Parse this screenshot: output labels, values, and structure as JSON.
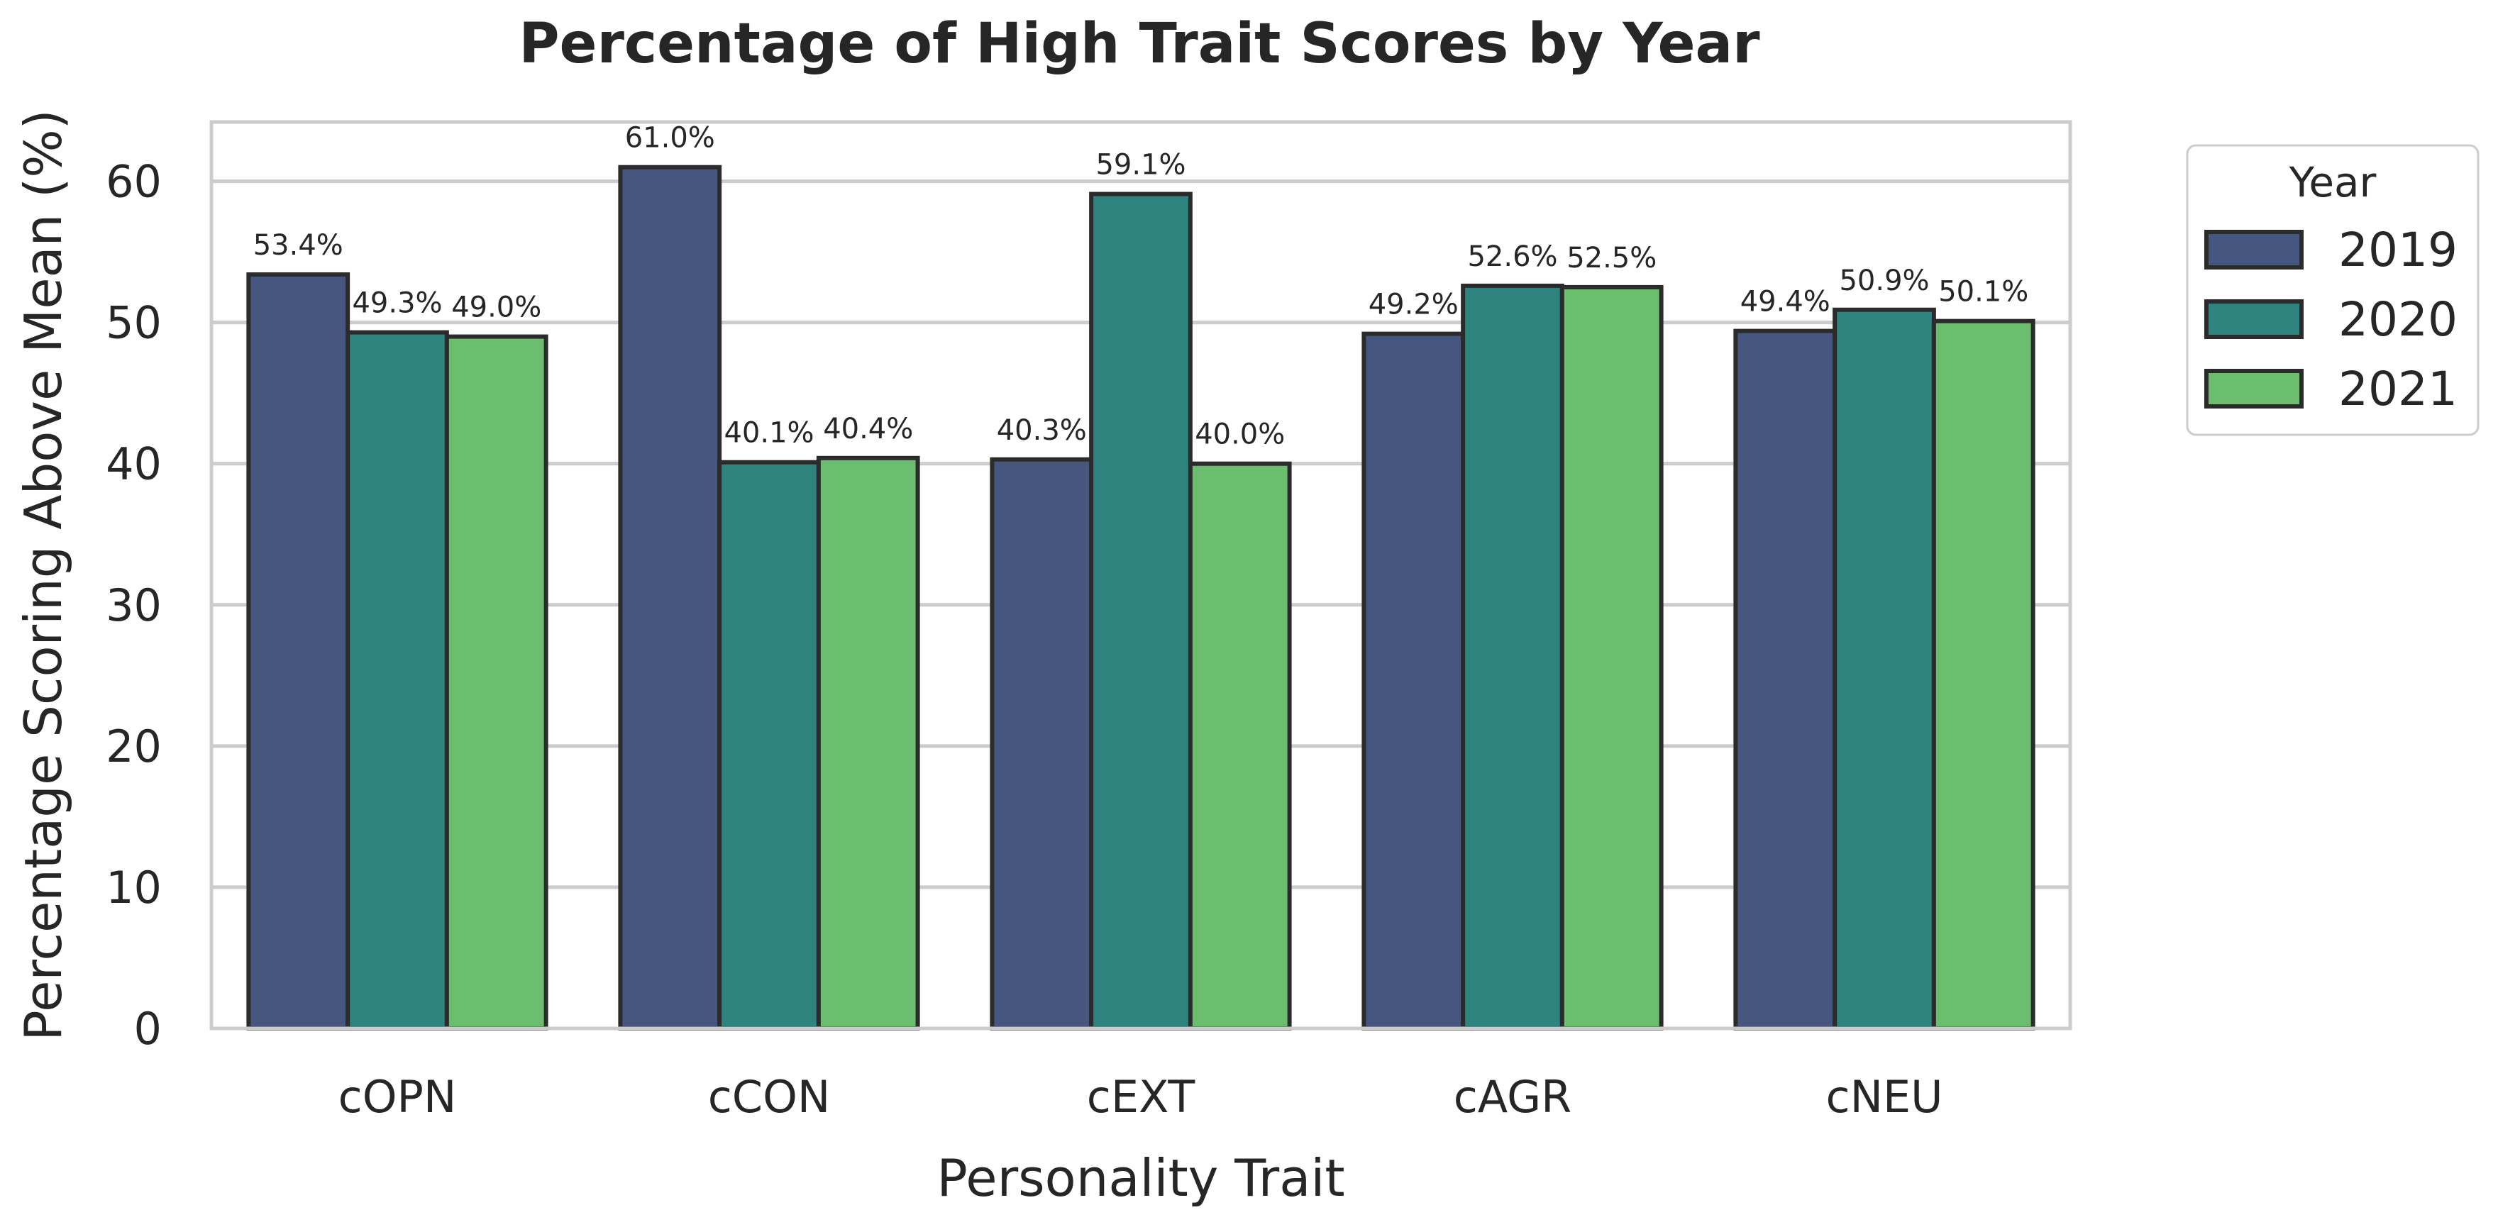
{
  "chart_data": {
    "type": "bar",
    "title": "Percentage of High Trait Scores by Year",
    "xlabel": "Personality Trait",
    "ylabel": "Percentage Scoring Above Mean (%)",
    "categories": [
      "cOPN",
      "cCON",
      "cEXT",
      "cAGR",
      "cNEU"
    ],
    "series": [
      {
        "name": "2019",
        "color": "#46567e",
        "values": [
          53.4,
          61.0,
          40.3,
          49.2,
          49.4
        ],
        "labels": [
          "53.4%",
          "61.0%",
          "40.3%",
          "49.2%",
          "49.4%"
        ]
      },
      {
        "name": "2020",
        "color": "#2e837e",
        "values": [
          49.3,
          40.1,
          59.1,
          52.6,
          50.9
        ],
        "labels": [
          "49.3%",
          "40.1%",
          "59.1%",
          "52.6%",
          "50.9%"
        ]
      },
      {
        "name": "2021",
        "color": "#6bbe6d",
        "values": [
          49.0,
          40.4,
          40.0,
          52.5,
          50.1
        ],
        "labels": [
          "49.0%",
          "40.4%",
          "40.0%",
          "52.5%",
          "50.1%"
        ]
      }
    ],
    "ylim": [
      0,
      64.2
    ],
    "yticks": [
      "0",
      "10",
      "20",
      "30",
      "40",
      "50",
      "60"
    ],
    "grid": true,
    "legend": {
      "title": "Year",
      "placement": "outside-right"
    }
  }
}
